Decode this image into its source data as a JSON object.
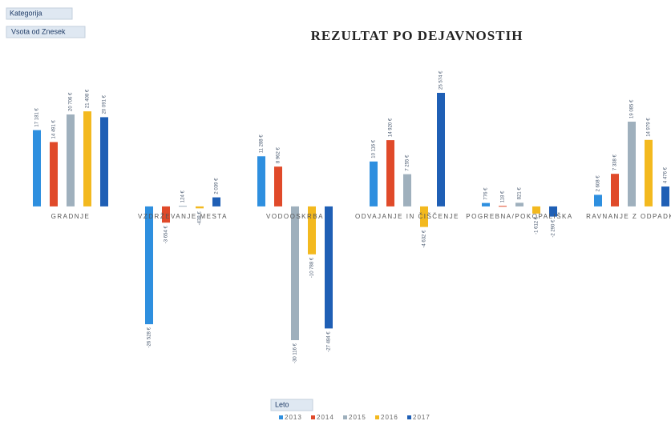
{
  "filter_buttons": [
    "Kategorija",
    "Vsota od Znesek"
  ],
  "legend_button": "Leto",
  "chart_data": {
    "type": "bar",
    "title": "REZULTAT PO DEJAVNOSTIH",
    "categories": [
      "GRADNJE",
      "VZDRŽEVANJE MESTA",
      "VODOOSKRBA",
      "ODVAJANJE IN ČIŠČENJE",
      "POGREBNA/POKOPALIŠKA",
      "RAVNANJE Z ODPADKI"
    ],
    "series": [
      {
        "name": "2013",
        "color": "#2e8fdf",
        "values": [
          17181,
          -26528,
          11288,
          10116,
          776,
          2608
        ],
        "value_labels": [
          "17 181 €",
          "-26 528 €",
          "11 288 €",
          "10 116 €",
          "776 €",
          "2 608 €"
        ]
      },
      {
        "name": "2014",
        "color": "#e04a2a",
        "values": [
          14491,
          -3654,
          8962,
          14920,
          118,
          7338
        ],
        "value_labels": [
          "14 491 €",
          "-3 654 €",
          "8 962 €",
          "14 920 €",
          "118 €",
          "7 338 €"
        ]
      },
      {
        "name": "2015",
        "color": "#9fb0bd",
        "values": [
          20706,
          124,
          -30116,
          7255,
          821,
          19085
        ],
        "value_labels": [
          "20 706 €",
          "124 €",
          "-30 116 €",
          "7 255 €",
          "821 €",
          "19 085 €"
        ]
      },
      {
        "name": "2016",
        "color": "#f3b91f",
        "values": [
          21408,
          -438,
          -10788,
          -4632,
          -1612,
          14979
        ],
        "value_labels": [
          "21 408 €",
          "-438 €",
          "-10 788 €",
          "-4 632 €",
          "-1 612 €",
          "14 979 €"
        ]
      },
      {
        "name": "2017",
        "color": "#1f5fb5",
        "values": [
          20091,
          2039,
          -27484,
          25574,
          -2290,
          4476
        ],
        "value_labels": [
          "20 091 €",
          "2 039 €",
          "-27 484 €",
          "25 574 €",
          "-2 290 €",
          "4 476 €"
        ]
      }
    ],
    "legend": "bottom"
  }
}
